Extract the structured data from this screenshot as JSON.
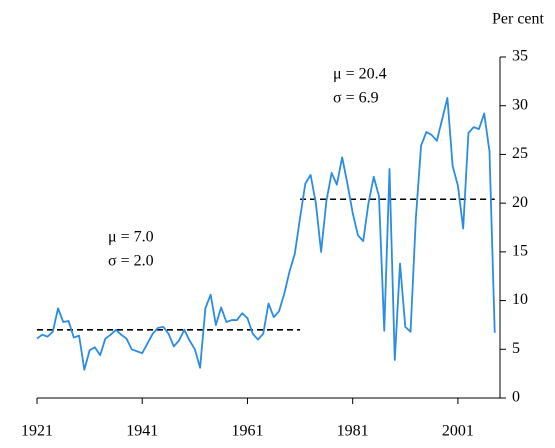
{
  "chart_data": {
    "type": "line",
    "y_axis_label": "Per cent",
    "x": [
      1921,
      1922,
      1923,
      1924,
      1925,
      1926,
      1927,
      1928,
      1929,
      1930,
      1931,
      1932,
      1933,
      1934,
      1935,
      1936,
      1937,
      1938,
      1939,
      1940,
      1941,
      1942,
      1943,
      1944,
      1945,
      1946,
      1947,
      1948,
      1949,
      1950,
      1951,
      1952,
      1953,
      1954,
      1955,
      1956,
      1957,
      1958,
      1959,
      1960,
      1961,
      1962,
      1963,
      1964,
      1965,
      1966,
      1967,
      1968,
      1969,
      1970,
      1971,
      1972,
      1973,
      1974,
      1975,
      1976,
      1977,
      1978,
      1979,
      1980,
      1981,
      1982,
      1983,
      1984,
      1985,
      1986,
      1987,
      1988,
      1989,
      1990,
      1991,
      1992,
      1993,
      1994,
      1995,
      1996,
      1997,
      1998,
      1999,
      2000,
      2001,
      2002,
      2003,
      2004,
      2005,
      2006,
      2007,
      2008
    ],
    "series": [
      {
        "color": "#2b8ce6",
        "values": [
          6.1,
          6.5,
          6.3,
          6.8,
          9.2,
          7.8,
          7.9,
          6.2,
          6.4,
          2.9,
          4.9,
          5.2,
          4.4,
          6.1,
          6.5,
          7.0,
          6.5,
          6.1,
          5.0,
          4.8,
          4.6,
          5.6,
          6.6,
          7.2,
          7.3,
          6.6,
          5.3,
          5.9,
          7.0,
          5.9,
          5.0,
          3.1,
          9.2,
          10.6,
          7.5,
          9.3,
          7.8,
          8.0,
          8.0,
          8.7,
          8.2,
          6.6,
          6.0,
          6.6,
          9.7,
          8.3,
          8.9,
          10.7,
          13.0,
          14.8,
          18.5,
          22.0,
          22.9,
          20.0,
          15.0,
          20.2,
          23.1,
          21.9,
          24.7,
          22.0,
          19.0,
          16.7,
          16.1,
          20.0,
          22.7,
          20.7,
          6.9,
          23.5,
          3.9,
          13.8,
          7.3,
          6.8,
          18.4,
          25.9,
          27.3,
          27.0,
          26.4,
          28.6,
          30.8,
          23.8,
          21.8,
          17.4,
          27.2,
          27.8,
          27.6,
          29.2,
          25.3,
          6.7
        ]
      }
    ],
    "mean_lines": [
      {
        "value": 7.0,
        "from": 1921,
        "to": 1971,
        "color": "#000000"
      },
      {
        "value": 20.4,
        "from": 1971,
        "to": 2008,
        "color": "#000000"
      }
    ],
    "annotations": [
      [
        "μ = 7.0",
        "σ = 2.0"
      ],
      [
        "μ = 20.4",
        "σ = 6.9"
      ]
    ],
    "xlim": [
      1921,
      2009
    ],
    "xticks": [
      1921,
      1941,
      1961,
      1981,
      2001
    ],
    "ylim": [
      0,
      35
    ],
    "yticks": [
      0,
      5,
      10,
      15,
      20,
      25,
      30,
      35
    ],
    "y_axis_side": "right"
  }
}
